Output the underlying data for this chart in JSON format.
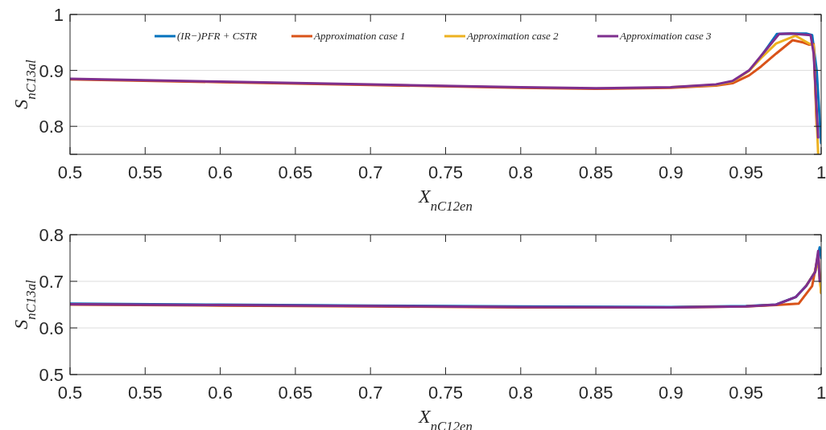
{
  "chart_data": [
    {
      "type": "line",
      "xlabel": "X$_{nC12en}$",
      "ylabel": "S$_{nC13al}$",
      "xlim": [
        0.5,
        1
      ],
      "ylim": [
        0.75,
        1
      ],
      "xticks": [
        0.5,
        0.55,
        0.6,
        0.65,
        0.7,
        0.75,
        0.8,
        0.85,
        0.9,
        0.95,
        1
      ],
      "yticks": [
        {
          "value": 0.75,
          "label": null
        },
        0.8,
        0.9,
        1
      ],
      "grid": "y",
      "legend": "top",
      "line_style": "solid",
      "marker": "none",
      "series": [
        {
          "name": "(IR−)PFR + CSTR",
          "color": "#0072bd",
          "x": [
            0.96,
            0.9705,
            0.98,
            0.99,
            0.994,
            0.997,
            1.0
          ],
          "values": [
            0.925,
            0.965,
            0.966,
            0.966,
            0.963,
            0.9,
            0.77
          ]
        },
        {
          "name": "Approximation case 1",
          "color": "#d95319",
          "x": [
            0.5,
            0.6,
            0.7,
            0.8,
            0.85,
            0.9,
            0.93,
            0.941,
            0.952,
            0.96,
            0.97,
            0.981,
            0.988,
            0.992,
            0.995,
            0.997
          ],
          "values": [
            0.884,
            0.879,
            0.874,
            0.869,
            0.867,
            0.869,
            0.873,
            0.877,
            0.891,
            0.907,
            0.93,
            0.954,
            0.95,
            0.946,
            0.947,
            0.8
          ]
        },
        {
          "name": "Approximation case 2",
          "color": "#edb120",
          "x": [
            0.9,
            0.93,
            0.941,
            0.952,
            0.96,
            0.97,
            0.983,
            0.992,
            0.995,
            0.998
          ],
          "values": [
            0.87,
            0.874,
            0.88,
            0.899,
            0.922,
            0.948,
            0.962,
            0.948,
            0.945,
            0.75
          ]
        },
        {
          "name": "Approximation case 3",
          "color": "#7e2f8e",
          "x": [
            0.5,
            0.6,
            0.7,
            0.8,
            0.85,
            0.9,
            0.93,
            0.941,
            0.952,
            0.96,
            0.972,
            0.98,
            0.993,
            0.995,
            0.998
          ],
          "values": [
            0.885,
            0.88,
            0.875,
            0.87,
            0.868,
            0.87,
            0.875,
            0.881,
            0.9,
            0.926,
            0.965,
            0.966,
            0.963,
            0.93,
            0.78
          ]
        }
      ]
    },
    {
      "type": "line",
      "xlabel": "X$_{nC12en}$",
      "ylabel": "S$_{nC13al}$",
      "xlim": [
        0.5,
        1
      ],
      "ylim": [
        0.5,
        0.8
      ],
      "xticks": [
        0.5,
        0.55,
        0.6,
        0.65,
        0.7,
        0.75,
        0.8,
        0.85,
        0.9,
        0.95,
        1
      ],
      "yticks": [
        0.5,
        0.6,
        0.7,
        0.8
      ],
      "grid": "y",
      "line_style": "solid",
      "marker": "none",
      "series": [
        {
          "color": "#0072bd",
          "x": [
            0.5,
            0.6,
            0.7,
            0.8,
            0.9,
            0.95,
            0.97,
            0.983,
            0.99,
            0.996,
            0.999,
            1.0
          ],
          "values": [
            0.652,
            0.65,
            0.648,
            0.646,
            0.645,
            0.647,
            0.65,
            0.666,
            0.69,
            0.72,
            0.773,
            0.75
          ]
        },
        {
          "color": "#d95319",
          "x": [
            0.5,
            0.6,
            0.7,
            0.8,
            0.9,
            0.95,
            0.97,
            0.985,
            0.994,
            0.998,
            1.0
          ],
          "values": [
            0.65,
            0.648,
            0.646,
            0.644,
            0.644,
            0.646,
            0.649,
            0.652,
            0.69,
            0.757,
            0.675
          ]
        },
        {
          "color": "#edb120",
          "x": [
            0.99,
            0.996,
            0.998,
            1.0
          ],
          "values": [
            0.69,
            0.72,
            0.745,
            0.675
          ]
        },
        {
          "color": "#7e2f8e",
          "x": [
            0.5,
            0.6,
            0.7,
            0.8,
            0.9,
            0.95,
            0.97,
            0.983,
            0.99,
            0.996,
            0.998,
            0.999
          ],
          "values": [
            0.651,
            0.649,
            0.647,
            0.645,
            0.644,
            0.646,
            0.65,
            0.666,
            0.69,
            0.72,
            0.765,
            0.7
          ]
        }
      ]
    }
  ]
}
